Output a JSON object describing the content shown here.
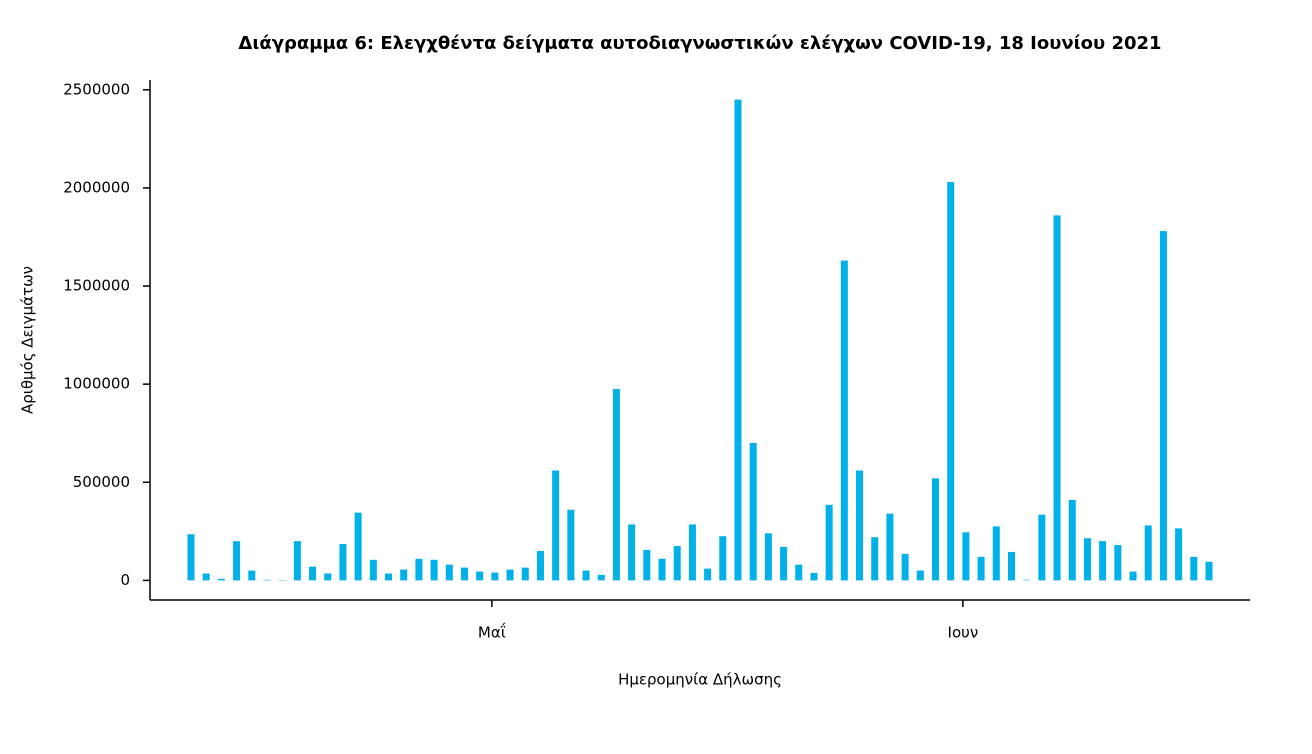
{
  "chart_data": {
    "type": "bar",
    "title": "Διάγραμμα 6: Ελεγχθέντα δείγματα αυτοδιαγνωστικών ελέγχων COVID-19, 18 Ιουνίου 2021",
    "x_label": "Ημερομηνία Δήλωσης",
    "y_label": "Αριθμός Δειγμάτων",
    "categories": [
      null,
      null,
      null,
      null,
      null,
      null,
      null,
      null,
      null,
      null,
      null,
      null,
      null,
      null,
      null,
      null,
      null,
      null,
      null,
      null,
      "Μαΐ",
      null,
      null,
      null,
      null,
      null,
      null,
      null,
      null,
      null,
      null,
      null,
      null,
      null,
      null,
      null,
      null,
      null,
      null,
      null,
      null,
      null,
      null,
      null,
      null,
      null,
      null,
      null,
      null,
      null,
      null,
      "Ιουν",
      null,
      null,
      null,
      null,
      null,
      null,
      null,
      null,
      null,
      null,
      null,
      null,
      null,
      null,
      null,
      null
    ],
    "values": [
      235000,
      35000,
      8000,
      200000,
      50000,
      3000,
      2000,
      200000,
      70000,
      35000,
      185000,
      345000,
      105000,
      35000,
      55000,
      110000,
      105000,
      80000,
      65000,
      45000,
      40000,
      55000,
      65000,
      150000,
      560000,
      360000,
      50000,
      28000,
      975000,
      285000,
      155000,
      110000,
      175000,
      285000,
      60000,
      225000,
      2450000,
      700000,
      240000,
      170000,
      80000,
      38000,
      385000,
      1630000,
      560000,
      220000,
      340000,
      135000,
      50000,
      520000,
      2030000,
      245000,
      120000,
      275000,
      145000,
      3000,
      335000,
      1860000,
      410000,
      215000,
      200000,
      180000,
      45000,
      280000,
      1780000,
      265000,
      120000,
      95000
    ],
    "color": "#00b0e8",
    "ylim": [
      -100000,
      2550000
    ],
    "yticks": [
      0,
      500000,
      1000000,
      1500000,
      2000000,
      2500000
    ],
    "grid": false
  }
}
